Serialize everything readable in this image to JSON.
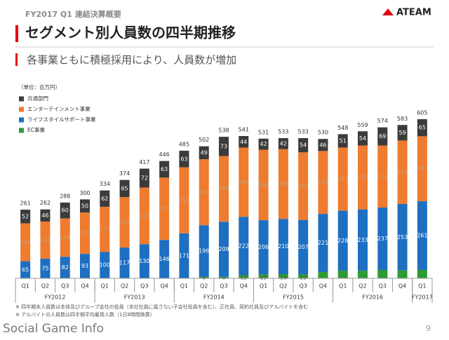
{
  "header": {
    "section": "FY2017 Q1 連結決算概要",
    "title": "セグメント別人員数の四半期推移",
    "logo": "ATEAM",
    "subtitle": "各事業ともに積極採用により、人員数が増加"
  },
  "chart_data": {
    "type": "stacked_bar",
    "unit_note": "（単位：百万円）",
    "categories": [
      "Q1",
      "Q2",
      "Q3",
      "Q4",
      "Q1",
      "Q2",
      "Q3",
      "Q4",
      "Q1",
      "Q2",
      "Q3",
      "Q4",
      "Q1",
      "Q2",
      "Q3",
      "Q4",
      "Q1",
      "Q2",
      "Q3",
      "Q4",
      "Q1"
    ],
    "x_groups": [
      {
        "label": "FY2012",
        "size": 4
      },
      {
        "label": "FY2013",
        "size": 4
      },
      {
        "label": "FY2014",
        "size": 4
      },
      {
        "label": "FY2015",
        "size": 4
      },
      {
        "label": "FY2016",
        "size": 4
      },
      {
        "label": "FY2017",
        "size": 1
      }
    ],
    "series": [
      {
        "name": "共通部門",
        "color": "#3b3b3b",
        "values": [
          52,
          46,
          60,
          50,
          62,
          65,
          72,
          63,
          63,
          49,
          73,
          44,
          42,
          42,
          54,
          46,
          51,
          54,
          69,
          59,
          65
        ]
      },
      {
        "name": "エンターテインメント事業",
        "color": "#ee7b2e",
        "values": [
          144,
          141,
          146,
          157,
          172,
          192,
          215,
          237,
          251,
          251,
          250,
          263,
          268,
          265,
          257,
          239,
          240,
          243,
          236,
          241,
          247
        ]
      },
      {
        "name": "ライフスタイルサポート事業",
        "color": "#1d6fc2",
        "values": [
          65,
          75,
          82,
          93,
          100,
          117,
          130,
          146,
          171,
          196,
          209,
          222,
          206,
          210,
          207,
          221,
          228,
          233,
          237,
          253,
          261
        ]
      },
      {
        "name": "EC事業",
        "color": "#2e9a33",
        "values": [
          null,
          null,
          null,
          null,
          null,
          null,
          null,
          null,
          null,
          6,
          6,
          12,
          15,
          16,
          15,
          24,
          29,
          29,
          32,
          30,
          32
        ]
      }
    ],
    "total_labels": [
      261,
      262,
      288,
      300,
      334,
      374,
      417,
      446,
      485,
      502,
      538,
      541,
      531,
      533,
      533,
      530,
      548,
      559,
      574,
      583,
      605
    ]
  },
  "footnotes": [
    "※ 四半期末人員数は本体及びグループ会社の役員（本社社員に属さない子会社役員を含む）、正社員、契約社員及びアルバイトを含む",
    "※ アルバイトの人員数は四半期平均雇用人数（1日8時間換算）"
  ],
  "footer": {
    "watermark": "Social Game Info",
    "page": "9"
  }
}
